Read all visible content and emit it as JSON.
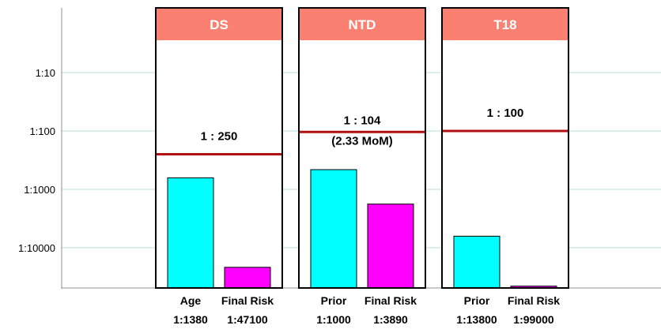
{
  "chart_data": {
    "type": "bar",
    "y_scale": "log",
    "y_axis": {
      "ticks": [
        {
          "value": 10,
          "label": "1:10"
        },
        {
          "value": 100,
          "label": "1:100"
        },
        {
          "value": 1000,
          "label": "1:1000"
        },
        {
          "value": 10000,
          "label": "1:10000"
        }
      ],
      "range": [
        1,
        100000
      ]
    },
    "grid": true,
    "colors": {
      "header": "#fa8072",
      "cutoff_line": "#b01010",
      "prior_bar": "#00ffff",
      "final_bar": "#ff00ff",
      "grid": "#b8dcdc"
    },
    "panels": [
      {
        "title": "DS",
        "cutoff": {
          "value": 250,
          "label": [
            "1 : 250"
          ]
        },
        "bars": [
          {
            "label": "Age",
            "risk_label": "1:1380",
            "value": 1380,
            "role": "prior"
          },
          {
            "label": "Final Risk",
            "risk_label": "1:47100",
            "value": 47100,
            "role": "final"
          }
        ]
      },
      {
        "title": "NTD",
        "cutoff": {
          "value": 104,
          "label": [
            "1 : 104",
            "(2.33 MoM)"
          ]
        },
        "bars": [
          {
            "label": "Prior",
            "risk_label": "1:1000",
            "value": 1000,
            "role": "prior"
          },
          {
            "label": "Final Risk",
            "risk_label": "1:3890",
            "value": 3890,
            "role": "final"
          }
        ]
      },
      {
        "title": "T18",
        "cutoff": {
          "value": 100,
          "label": [
            "1 : 100"
          ]
        },
        "bars": [
          {
            "label": "Prior",
            "risk_label": "1:13800",
            "value": 13800,
            "role": "prior"
          },
          {
            "label": "Final Risk",
            "risk_label": "1:99000",
            "value": 99000,
            "role": "final"
          }
        ]
      }
    ]
  }
}
